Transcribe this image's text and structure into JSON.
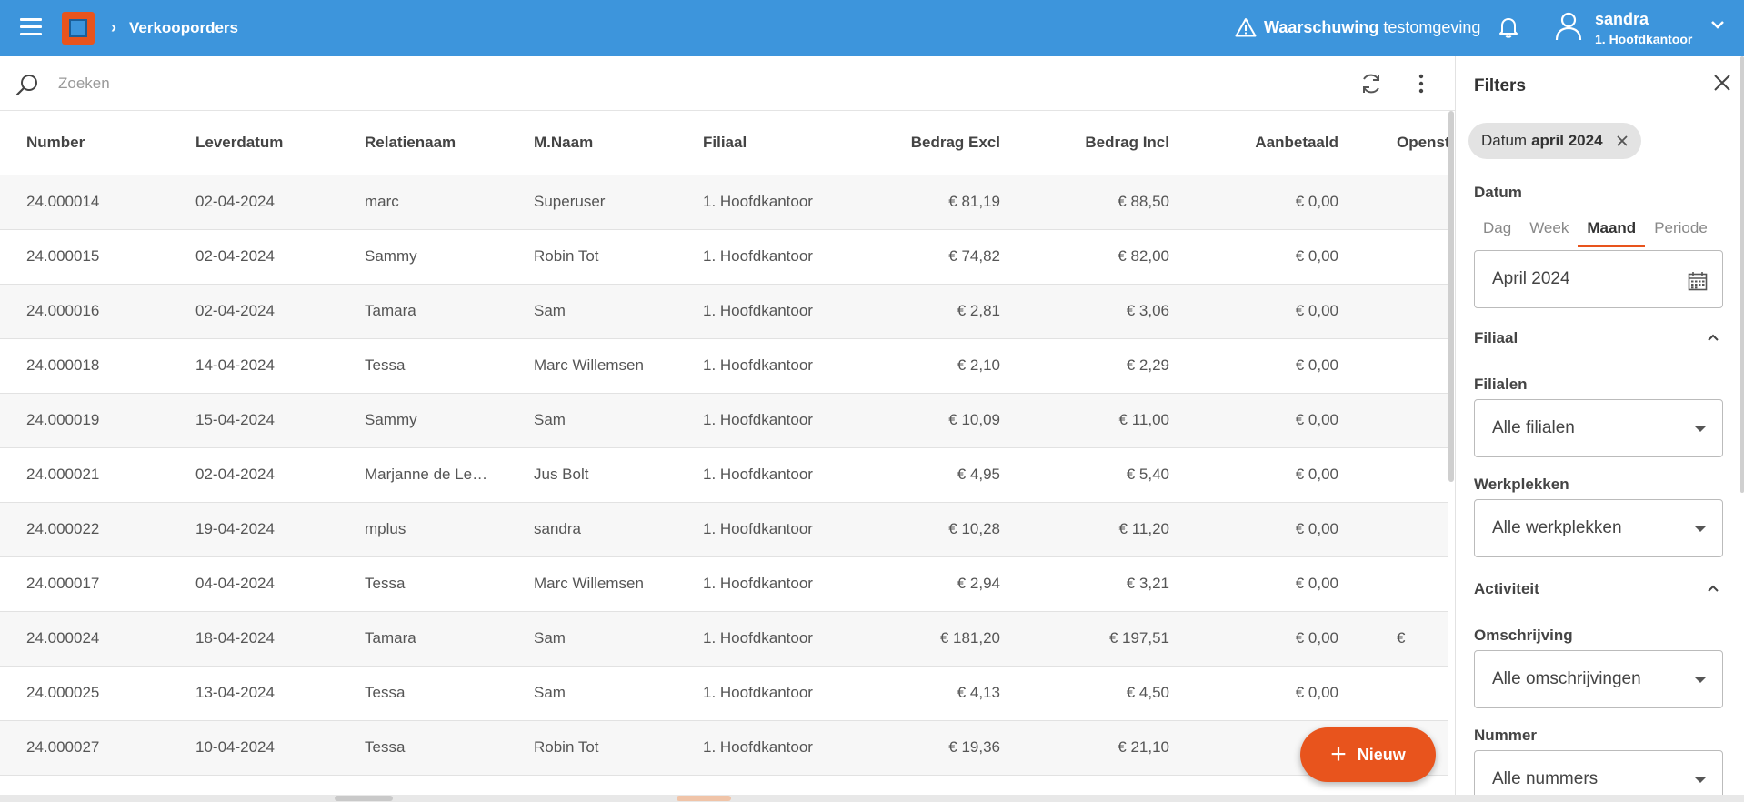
{
  "header": {
    "breadcrumb": "Verkooporders",
    "warning_bold": "Waarschuwing",
    "warning_text": "testomgeving",
    "user_name": "sandra",
    "user_location": "1. Hoofdkantoor"
  },
  "search": {
    "placeholder": "Zoeken"
  },
  "table": {
    "columns": [
      "Number",
      "Leverdatum",
      "Relatienaam",
      "M.Naam",
      "Filiaal",
      "Bedrag Excl",
      "Bedrag Incl",
      "Aanbetaald",
      "Openst"
    ],
    "rows": [
      [
        "24.000014",
        "02-04-2024",
        "marc",
        "Superuser",
        "1. Hoofdkantoor",
        "€ 81,19",
        "€ 88,50",
        "€ 0,00",
        ""
      ],
      [
        "24.000015",
        "02-04-2024",
        "Sammy",
        "Robin Tot",
        "1. Hoofdkantoor",
        "€ 74,82",
        "€ 82,00",
        "€ 0,00",
        ""
      ],
      [
        "24.000016",
        "02-04-2024",
        "Tamara",
        "Sam",
        "1. Hoofdkantoor",
        "€ 2,81",
        "€ 3,06",
        "€ 0,00",
        ""
      ],
      [
        "24.000018",
        "14-04-2024",
        "Tessa",
        "Marc Willemsen",
        "1. Hoofdkantoor",
        "€ 2,10",
        "€ 2,29",
        "€ 0,00",
        ""
      ],
      [
        "24.000019",
        "15-04-2024",
        "Sammy",
        "Sam",
        "1. Hoofdkantoor",
        "€ 10,09",
        "€ 11,00",
        "€ 0,00",
        ""
      ],
      [
        "24.000021",
        "02-04-2024",
        "Marjanne de Le…",
        "Jus Bolt",
        "1. Hoofdkantoor",
        "€ 4,95",
        "€ 5,40",
        "€ 0,00",
        ""
      ],
      [
        "24.000022",
        "19-04-2024",
        "mplus",
        "sandra",
        "1. Hoofdkantoor",
        "€ 10,28",
        "€ 11,20",
        "€ 0,00",
        ""
      ],
      [
        "24.000017",
        "04-04-2024",
        "Tessa",
        "Marc Willemsen",
        "1. Hoofdkantoor",
        "€ 2,94",
        "€ 3,21",
        "€ 0,00",
        ""
      ],
      [
        "24.000024",
        "18-04-2024",
        "Tamara",
        "Sam",
        "1. Hoofdkantoor",
        "€ 181,20",
        "€ 197,51",
        "€ 0,00",
        "€"
      ],
      [
        "24.000025",
        "13-04-2024",
        "Tessa",
        "Sam",
        "1. Hoofdkantoor",
        "€ 4,13",
        "€ 4,50",
        "€ 0,00",
        ""
      ],
      [
        "24.000027",
        "10-04-2024",
        "Tessa",
        "Robin Tot",
        "1. Hoofdkantoor",
        "€ 19,36",
        "€ 21,10",
        "€",
        ""
      ]
    ]
  },
  "fab": {
    "label": "Nieuw"
  },
  "filters": {
    "title": "Filters",
    "chip_label": "Datum",
    "chip_value": "april 2024",
    "datum_label": "Datum",
    "tabs": [
      "Dag",
      "Week",
      "Maand",
      "Periode"
    ],
    "active_tab": "Maand",
    "date_value": "April 2024",
    "section_filiaal": "Filiaal",
    "filialen_label": "Filialen",
    "filialen_value": "Alle filialen",
    "werkplekken_label": "Werkplekken",
    "werkplekken_value": "Alle werkplekken",
    "section_activiteit": "Activiteit",
    "omschrijving_label": "Omschrijving",
    "omschrijving_value": "Alle omschrijvingen",
    "nummer_label": "Nummer",
    "nummer_value": "Alle nummers"
  },
  "colors": {
    "topbar": "#3d95dc",
    "accent": "#e8541d"
  }
}
